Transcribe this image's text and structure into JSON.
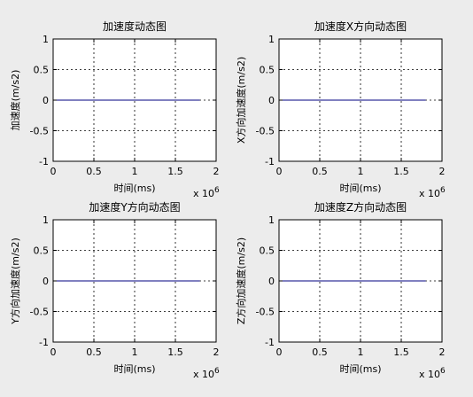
{
  "figure": {
    "background": "#ececec",
    "axes_background": "#ffffff",
    "line_color": "#000080"
  },
  "chart_data": [
    {
      "type": "line",
      "title": "加速度动态图",
      "xlabel": "时间(ms)",
      "ylabel": "加速度(m/s2)",
      "xlim": [
        0,
        2000000
      ],
      "ylim": [
        -1,
        1
      ],
      "x_ticks": [
        0,
        0.5,
        1,
        1.5,
        2
      ],
      "x_tick_labels": [
        "0",
        "0.5",
        "1",
        "1.5",
        "2"
      ],
      "y_ticks": [
        -1,
        -0.5,
        0,
        0.5,
        1
      ],
      "y_tick_labels": [
        "-1",
        "-0.5",
        "0",
        "0.5",
        "1"
      ],
      "x_exponent_label": "x 10",
      "x_exponent_power": "6",
      "grid": true,
      "series": [
        {
          "x": [
            0,
            1800000
          ],
          "values": [
            0,
            0
          ]
        }
      ]
    },
    {
      "type": "line",
      "title": "加速度X方向动态图",
      "xlabel": "时间(ms)",
      "ylabel": "X方向加速度(m/s2)",
      "xlim": [
        0,
        2000000
      ],
      "ylim": [
        -1,
        1
      ],
      "x_ticks": [
        0,
        0.5,
        1,
        1.5,
        2
      ],
      "x_tick_labels": [
        "0",
        "0.5",
        "1",
        "1.5",
        "2"
      ],
      "y_ticks": [
        -1,
        -0.5,
        0,
        0.5,
        1
      ],
      "y_tick_labels": [
        "-1",
        "-0.5",
        "0",
        "0.5",
        "1"
      ],
      "x_exponent_label": "x 10",
      "x_exponent_power": "6",
      "grid": true,
      "series": [
        {
          "x": [
            0,
            1800000
          ],
          "values": [
            0,
            0
          ]
        }
      ]
    },
    {
      "type": "line",
      "title": "加速度Y方向动态图",
      "xlabel": "时间(ms)",
      "ylabel": "Y方向加速度(m/s2)",
      "xlim": [
        0,
        2000000
      ],
      "ylim": [
        -1,
        1
      ],
      "x_ticks": [
        0,
        0.5,
        1,
        1.5,
        2
      ],
      "x_tick_labels": [
        "0",
        "0.5",
        "1",
        "1.5",
        "2"
      ],
      "y_ticks": [
        -1,
        -0.5,
        0,
        0.5,
        1
      ],
      "y_tick_labels": [
        "-1",
        "-0.5",
        "0",
        "0.5",
        "1"
      ],
      "x_exponent_label": "x 10",
      "x_exponent_power": "6",
      "grid": true,
      "series": [
        {
          "x": [
            0,
            1800000
          ],
          "values": [
            0,
            0
          ]
        }
      ]
    },
    {
      "type": "line",
      "title": "加速度Z方向动态图",
      "xlabel": "时间(ms)",
      "ylabel": "Z方向加速度(m/s2)",
      "xlim": [
        0,
        2000000
      ],
      "ylim": [
        -1,
        1
      ],
      "x_ticks": [
        0,
        0.5,
        1,
        1.5,
        2
      ],
      "x_tick_labels": [
        "0",
        "0.5",
        "1",
        "1.5",
        "2"
      ],
      "y_ticks": [
        -1,
        -0.5,
        0,
        0.5,
        1
      ],
      "y_tick_labels": [
        "-1",
        "-0.5",
        "0",
        "0.5",
        "1"
      ],
      "x_exponent_label": "x 10",
      "x_exponent_power": "6",
      "grid": true,
      "series": [
        {
          "x": [
            0,
            1800000
          ],
          "values": [
            0,
            0
          ]
        }
      ]
    }
  ]
}
